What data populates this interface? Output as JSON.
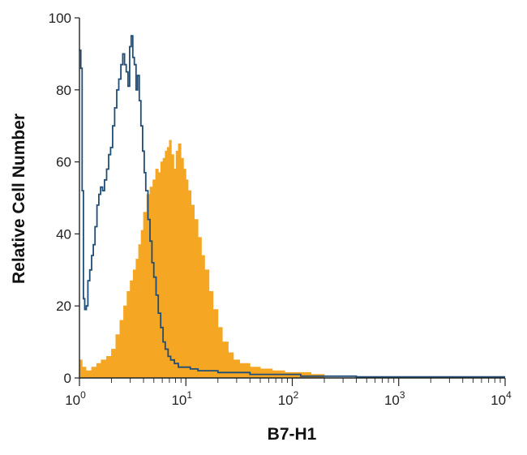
{
  "chart_data": {
    "type": "area",
    "title": "",
    "xlabel": "B7-H1",
    "ylabel": "Relative Cell Number",
    "x_scale": "log",
    "xlim": [
      1,
      10000
    ],
    "ylim": [
      0,
      100
    ],
    "x_ticks": [
      {
        "base": "10",
        "exp": "0"
      },
      {
        "base": "10",
        "exp": "1"
      },
      {
        "base": "10",
        "exp": "2"
      },
      {
        "base": "10",
        "exp": "3"
      },
      {
        "base": "10",
        "exp": "4"
      }
    ],
    "y_ticks": [
      "0",
      "20",
      "40",
      "60",
      "80",
      "100"
    ],
    "grid": false,
    "legend": "none",
    "series": [
      {
        "style": "step-outline",
        "color": "#1f4e79",
        "points": [
          [
            1.0,
            91
          ],
          [
            1.03,
            86
          ],
          [
            1.06,
            52
          ],
          [
            1.09,
            22
          ],
          [
            1.12,
            19
          ],
          [
            1.16,
            20
          ],
          [
            1.2,
            27
          ],
          [
            1.25,
            30
          ],
          [
            1.3,
            34
          ],
          [
            1.35,
            37
          ],
          [
            1.4,
            42
          ],
          [
            1.46,
            48
          ],
          [
            1.52,
            51
          ],
          [
            1.58,
            53
          ],
          [
            1.65,
            52
          ],
          [
            1.72,
            55
          ],
          [
            1.8,
            58
          ],
          [
            1.88,
            62
          ],
          [
            1.96,
            64
          ],
          [
            2.05,
            70
          ],
          [
            2.14,
            75
          ],
          [
            2.24,
            80
          ],
          [
            2.34,
            83
          ],
          [
            2.45,
            87
          ],
          [
            2.55,
            90
          ],
          [
            2.65,
            87
          ],
          [
            2.75,
            85
          ],
          [
            2.86,
            81
          ],
          [
            2.96,
            92
          ],
          [
            3.06,
            95
          ],
          [
            3.17,
            89
          ],
          [
            3.28,
            87
          ],
          [
            3.4,
            80
          ],
          [
            3.52,
            84
          ],
          [
            3.65,
            77
          ],
          [
            3.78,
            70
          ],
          [
            3.92,
            63
          ],
          [
            4.06,
            57
          ],
          [
            4.2,
            52
          ],
          [
            4.4,
            44
          ],
          [
            4.6,
            38
          ],
          [
            4.8,
            32
          ],
          [
            5.0,
            28
          ],
          [
            5.25,
            23
          ],
          [
            5.5,
            18
          ],
          [
            5.8,
            14
          ],
          [
            6.1,
            10
          ],
          [
            6.4,
            8
          ],
          [
            6.8,
            6
          ],
          [
            7.2,
            5
          ],
          [
            7.8,
            4
          ],
          [
            8.5,
            3
          ],
          [
            9.5,
            3
          ],
          [
            11,
            2.5
          ],
          [
            13,
            2
          ],
          [
            16,
            2
          ],
          [
            20,
            1.5
          ],
          [
            25,
            1.5
          ],
          [
            32,
            1.5
          ],
          [
            40,
            1
          ],
          [
            55,
            1
          ],
          [
            80,
            1
          ],
          [
            120,
            0.5
          ],
          [
            200,
            0.5
          ],
          [
            400,
            0.3
          ],
          [
            1000,
            0.3
          ],
          [
            10000,
            0.3
          ]
        ]
      },
      {
        "style": "filled",
        "color": "#f5a623",
        "points": [
          [
            1.0,
            5
          ],
          [
            1.06,
            3
          ],
          [
            1.15,
            2
          ],
          [
            1.3,
            3
          ],
          [
            1.45,
            4
          ],
          [
            1.6,
            5
          ],
          [
            1.8,
            6
          ],
          [
            2.0,
            8
          ],
          [
            2.2,
            12
          ],
          [
            2.4,
            16
          ],
          [
            2.6,
            20
          ],
          [
            2.8,
            24
          ],
          [
            3.0,
            27
          ],
          [
            3.2,
            30
          ],
          [
            3.4,
            33
          ],
          [
            3.6,
            37
          ],
          [
            3.8,
            41
          ],
          [
            4.0,
            46
          ],
          [
            4.3,
            51
          ],
          [
            4.6,
            53
          ],
          [
            4.9,
            55
          ],
          [
            5.2,
            58
          ],
          [
            5.5,
            57
          ],
          [
            5.8,
            60
          ],
          [
            6.1,
            61
          ],
          [
            6.4,
            63
          ],
          [
            6.7,
            64
          ],
          [
            7.0,
            66
          ],
          [
            7.3,
            62
          ],
          [
            7.7,
            58
          ],
          [
            8.1,
            63
          ],
          [
            8.5,
            65
          ],
          [
            9.0,
            61
          ],
          [
            9.5,
            58
          ],
          [
            10.0,
            55
          ],
          [
            10.5,
            52
          ],
          [
            11.2,
            48
          ],
          [
            12.0,
            44
          ],
          [
            13.0,
            39
          ],
          [
            14.0,
            34
          ],
          [
            15.0,
            30
          ],
          [
            16.5,
            24
          ],
          [
            18.0,
            19
          ],
          [
            20.0,
            14
          ],
          [
            22.0,
            10
          ],
          [
            25.0,
            7
          ],
          [
            28.0,
            5
          ],
          [
            32.0,
            4
          ],
          [
            40.0,
            3
          ],
          [
            50.0,
            2.5
          ],
          [
            65.0,
            2
          ],
          [
            85.0,
            1.5
          ],
          [
            110.0,
            1.5
          ],
          [
            150.0,
            1
          ],
          [
            200.0,
            1
          ]
        ]
      }
    ]
  }
}
